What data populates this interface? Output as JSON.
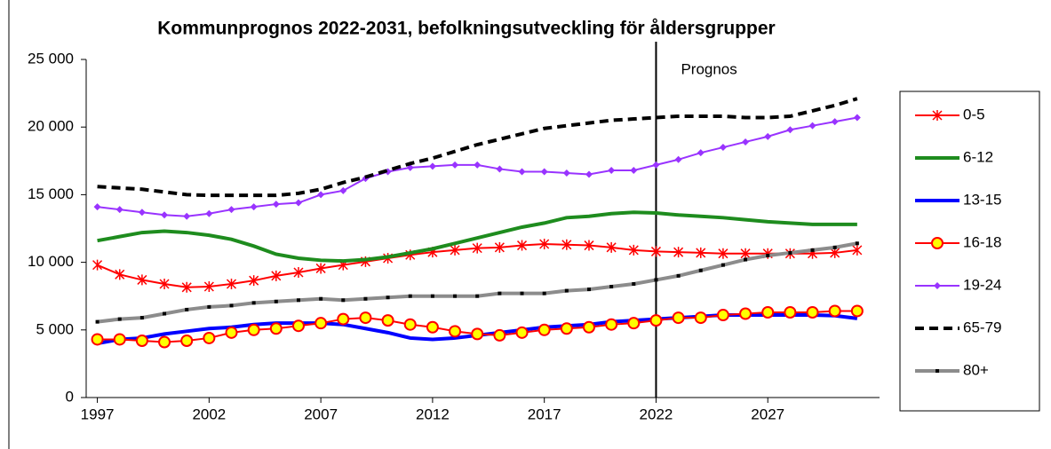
{
  "chart_data": {
    "type": "line",
    "title": "Kommunprognos 2022-2031, befolkningsutveckling för åldersgrupper",
    "x": [
      1997,
      1998,
      1999,
      2000,
      2001,
      2002,
      2003,
      2004,
      2005,
      2006,
      2007,
      2008,
      2009,
      2010,
      2011,
      2012,
      2013,
      2014,
      2015,
      2016,
      2017,
      2018,
      2019,
      2020,
      2021,
      2022,
      2023,
      2024,
      2025,
      2026,
      2027,
      2028,
      2029,
      2030,
      2031
    ],
    "xlim": [
      1996.5,
      2032
    ],
    "xticks": [
      1997,
      2002,
      2007,
      2012,
      2017,
      2022,
      2027
    ],
    "ylim": [
      0,
      25000
    ],
    "yticks": [
      0,
      {
        "value": 5000,
        "label": "5 000"
      },
      {
        "value": 10000,
        "label": "10 000"
      },
      {
        "value": 15000,
        "label": "15 000"
      },
      {
        "value": 20000,
        "label": "20 000"
      },
      {
        "value": 25000,
        "label": "25 000"
      }
    ],
    "grid": false,
    "legend": "right",
    "annotation": {
      "text": "Prognos",
      "x": 2022
    },
    "series": [
      {
        "name": "0-5",
        "color": "#ff0000",
        "marker": "star",
        "dash": false,
        "values": [
          9800,
          9100,
          8700,
          8400,
          8150,
          8200,
          8400,
          8650,
          9000,
          9250,
          9550,
          9800,
          10050,
          10300,
          10550,
          10750,
          10900,
          11050,
          11100,
          11250,
          11350,
          11300,
          11250,
          11100,
          10900,
          10800,
          10750,
          10700,
          10650,
          10650,
          10650,
          10650,
          10650,
          10700,
          10900
        ]
      },
      {
        "name": "6-12",
        "color": "#1e8c1e",
        "marker": "none",
        "dash": false,
        "values": [
          11600,
          11900,
          12200,
          12300,
          12200,
          12000,
          11700,
          11200,
          10600,
          10300,
          10150,
          10100,
          10200,
          10400,
          10700,
          11000,
          11400,
          11800,
          12200,
          12600,
          12900,
          13300,
          13400,
          13600,
          13700,
          13650,
          13500,
          13400,
          13300,
          13150,
          13000,
          12900,
          12800,
          12800,
          12800
        ]
      },
      {
        "name": "13-15",
        "color": "#0000ff",
        "marker": "none",
        "dash": false,
        "values": [
          4000,
          4300,
          4400,
          4700,
          4900,
          5100,
          5200,
          5400,
          5500,
          5500,
          5500,
          5400,
          5100,
          4800,
          4400,
          4300,
          4400,
          4600,
          4800,
          5000,
          5200,
          5300,
          5400,
          5600,
          5700,
          5800,
          5900,
          6000,
          6100,
          6100,
          6100,
          6100,
          6100,
          6050,
          5850
        ]
      },
      {
        "name": "16-18",
        "color": "#ff0000",
        "marker": "circle",
        "dash": false,
        "values": [
          4300,
          4300,
          4200,
          4100,
          4200,
          4400,
          4800,
          5000,
          5100,
          5300,
          5500,
          5800,
          5900,
          5700,
          5400,
          5200,
          4900,
          4700,
          4600,
          4800,
          5000,
          5100,
          5200,
          5400,
          5500,
          5700,
          5900,
          5900,
          6100,
          6200,
          6300,
          6300,
          6300,
          6400,
          6400
        ]
      },
      {
        "name": "19-24",
        "color": "#9933ff",
        "marker": "diamond",
        "dash": false,
        "values": [
          14100,
          13900,
          13700,
          13500,
          13400,
          13600,
          13900,
          14100,
          14300,
          14400,
          15000,
          15300,
          16200,
          16700,
          17000,
          17100,
          17200,
          17200,
          16900,
          16700,
          16700,
          16600,
          16500,
          16800,
          16800,
          17200,
          17600,
          18100,
          18500,
          18900,
          19300,
          19800,
          20100,
          20400,
          20700
        ]
      },
      {
        "name": "65-79",
        "color": "#000000",
        "marker": "none",
        "dash": true,
        "values": [
          15600,
          15500,
          15400,
          15200,
          15000,
          14950,
          14950,
          14950,
          14950,
          15100,
          15400,
          15900,
          16300,
          16800,
          17300,
          17700,
          18200,
          18700,
          19100,
          19500,
          19900,
          20100,
          20300,
          20500,
          20600,
          20700,
          20800,
          20800,
          20800,
          20700,
          20700,
          20800,
          21200,
          21600,
          22100
        ]
      },
      {
        "name": "80+",
        "color": "#8c8c8c",
        "marker": "square",
        "dash": false,
        "values": [
          5600,
          5800,
          5900,
          6200,
          6500,
          6700,
          6800,
          7000,
          7100,
          7200,
          7300,
          7200,
          7300,
          7400,
          7500,
          7500,
          7500,
          7500,
          7700,
          7700,
          7700,
          7900,
          8000,
          8200,
          8400,
          8700,
          9000,
          9400,
          9800,
          10200,
          10500,
          10700,
          10900,
          11100,
          11400
        ]
      }
    ]
  }
}
